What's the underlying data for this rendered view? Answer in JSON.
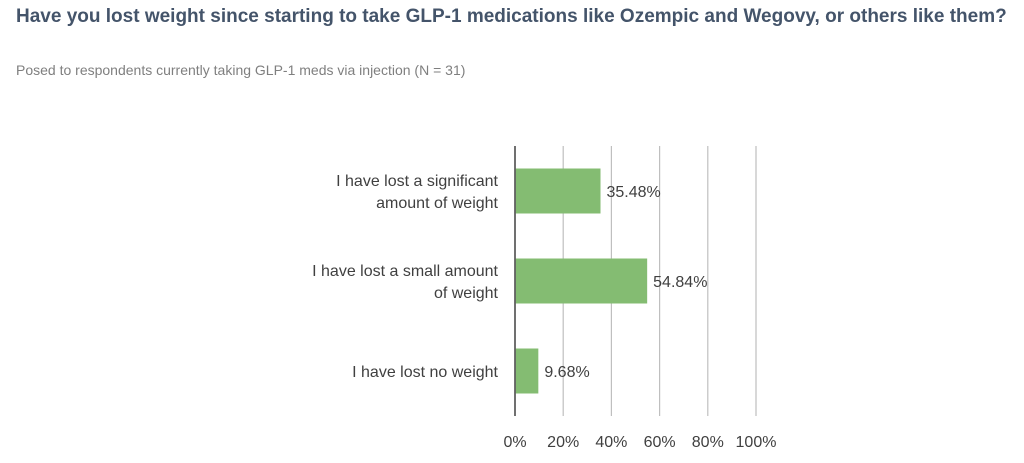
{
  "title": "Have you lost weight since starting to take GLP-1 medications like Ozempic and Wegovy, or others like them?",
  "subtitle": "Posed to respondents currently taking GLP-1 meds via injection (N = 31)",
  "colors": {
    "title": "#44546a",
    "subtitle": "#7f7f7f",
    "bar": "#84bc72",
    "grid": "#bfbfbf",
    "axis": "#404040",
    "text": "#404040"
  },
  "chart_data": {
    "type": "bar",
    "orientation": "horizontal",
    "categories": [
      [
        "I have lost a significant",
        "amount of weight"
      ],
      [
        "I have lost a small amount",
        "of weight"
      ],
      [
        "I have lost no weight"
      ]
    ],
    "values": [
      35.48,
      54.84,
      9.68
    ],
    "data_labels": [
      "35.48%",
      "54.84%",
      "9.68%"
    ],
    "xlim": [
      0,
      100
    ],
    "x_ticks": [
      0,
      20,
      40,
      60,
      80,
      100
    ],
    "x_tick_labels": [
      "0%",
      "20%",
      "40%",
      "60%",
      "80%",
      "100%"
    ],
    "grid": true,
    "legend": "none"
  }
}
